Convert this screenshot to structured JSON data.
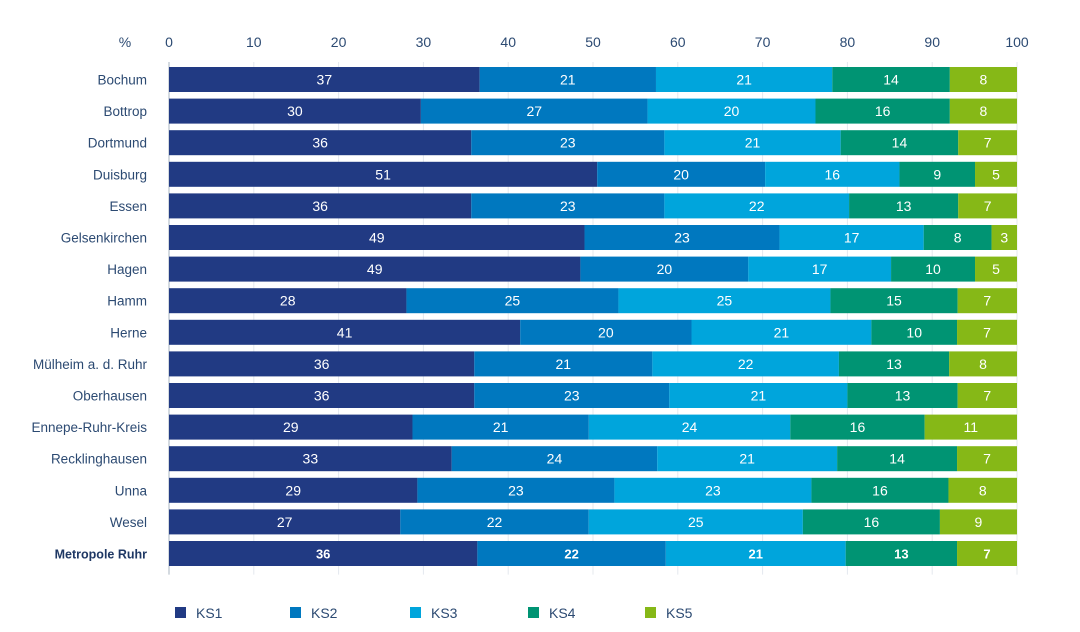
{
  "chart_data": {
    "type": "bar",
    "orientation": "horizontal",
    "stacked": true,
    "title": "",
    "xlabel": "%",
    "ylabel": "",
    "xlim": [
      0,
      100
    ],
    "x_ticks": [
      "0",
      "10",
      "20",
      "30",
      "40",
      "50",
      "60",
      "70",
      "80",
      "90",
      "100"
    ],
    "grid": true,
    "legend_position": "bottom",
    "categories": [
      "Bochum",
      "Bottrop",
      "Dortmund",
      "Duisburg",
      "Essen",
      "Gelsenkirchen",
      "Hagen",
      "Hamm",
      "Herne",
      "Mülheim a. d. Ruhr",
      "Oberhausen",
      "Ennepe-Ruhr-Kreis",
      "Recklinghausen",
      "Unna",
      "Wesel",
      "Metropole Ruhr"
    ],
    "highlight_category": "Metropole Ruhr",
    "series": [
      {
        "name": "KS1",
        "color": "#213a83",
        "values": [
          37,
          30,
          36,
          51,
          36,
          49,
          49,
          28,
          41,
          36,
          36,
          29,
          33,
          29,
          27,
          36
        ]
      },
      {
        "name": "KS2",
        "color": "#0078bf",
        "values": [
          21,
          27,
          23,
          20,
          23,
          23,
          20,
          25,
          20,
          21,
          23,
          21,
          24,
          23,
          22,
          22
        ]
      },
      {
        "name": "KS3",
        "color": "#00a5dc",
        "values": [
          21,
          20,
          21,
          16,
          22,
          17,
          17,
          25,
          21,
          22,
          21,
          24,
          21,
          23,
          25,
          21
        ]
      },
      {
        "name": "KS4",
        "color": "#009473",
        "values": [
          14,
          16,
          14,
          9,
          13,
          8,
          10,
          15,
          10,
          13,
          13,
          16,
          14,
          16,
          16,
          13
        ]
      },
      {
        "name": "KS5",
        "color": "#86b817",
        "values": [
          8,
          8,
          7,
          5,
          7,
          3,
          5,
          7,
          7,
          8,
          7,
          11,
          7,
          8,
          9,
          7
        ]
      }
    ]
  }
}
